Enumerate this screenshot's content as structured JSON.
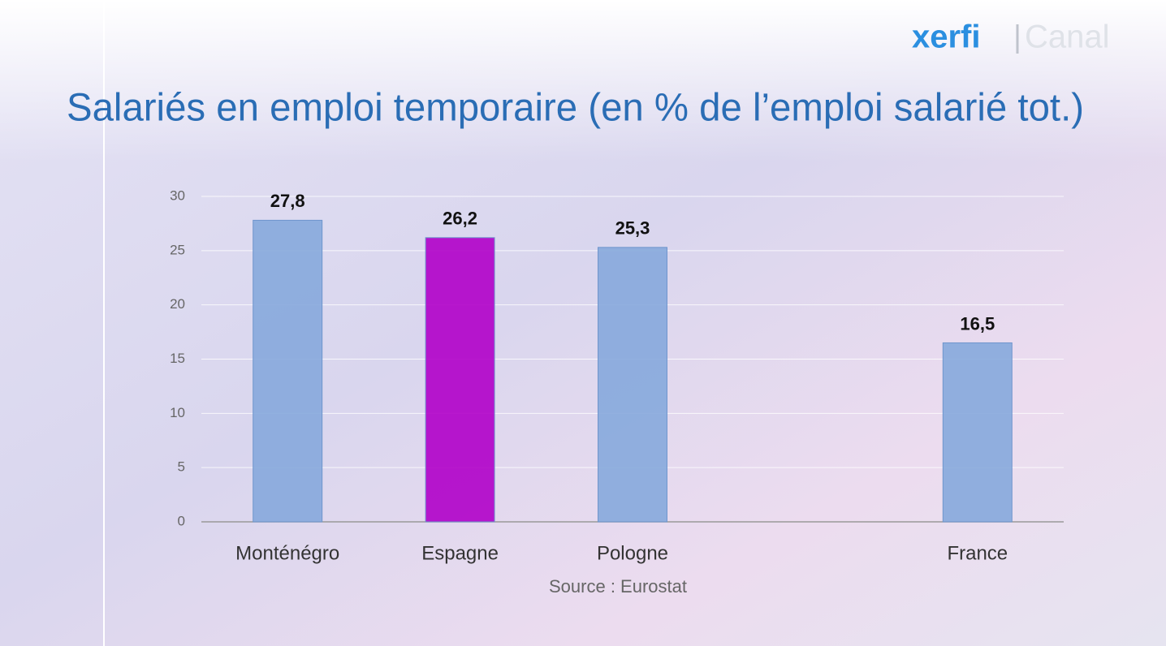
{
  "logo": {
    "brand": "xerfi",
    "channel": "Canal"
  },
  "chart_data": {
    "type": "bar",
    "title": "Salariés en emploi temporaire (en % de l’emploi salarié tot.)",
    "source": "Source : Eurostat",
    "categories": [
      "Monténégro",
      "Espagne",
      "Pologne",
      null,
      "France"
    ],
    "values": [
      27.8,
      26.2,
      25.3,
      null,
      16.5
    ],
    "value_labels": [
      "27,8",
      "26,2",
      "25,3",
      null,
      "16,5"
    ],
    "colors": [
      "#86a9dc",
      "#b000c8",
      "#86a9dc",
      null,
      "#86a9dc"
    ],
    "ylim": [
      0,
      30
    ],
    "yticks": [
      0,
      5,
      10,
      15,
      20,
      25,
      30
    ],
    "grid": true
  }
}
